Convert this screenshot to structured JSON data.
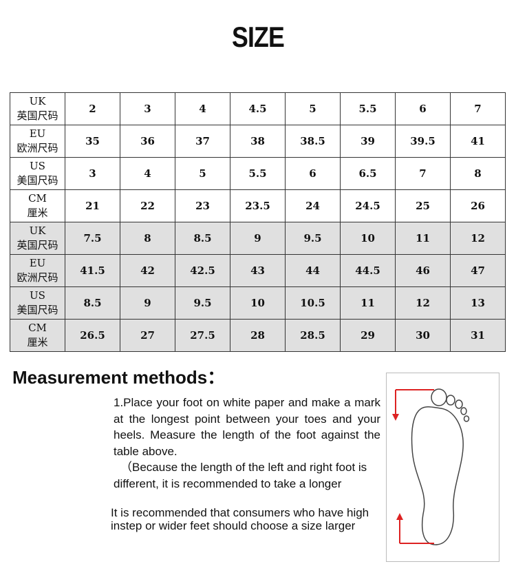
{
  "header": {
    "title": "SIZE"
  },
  "table": {
    "rows": [
      {
        "label": [
          "UK",
          "英国尺码"
        ],
        "cells": [
          "2",
          "3",
          "4",
          "4.5",
          "5",
          "5.5",
          "6",
          "7"
        ]
      },
      {
        "label": [
          "EU",
          "欧洲尺码"
        ],
        "cells": [
          "35",
          "36",
          "37",
          "38",
          "38.5",
          "39",
          "39.5",
          "41"
        ]
      },
      {
        "label": [
          "US",
          "美国尺码"
        ],
        "cells": [
          "3",
          "4",
          "5",
          "5.5",
          "6",
          "6.5",
          "7",
          "8"
        ]
      },
      {
        "label": [
          "CM",
          "厘米"
        ],
        "cells": [
          "21",
          "22",
          "23",
          "23.5",
          "24",
          "24.5",
          "25",
          "26"
        ]
      },
      {
        "label": [
          "UK",
          "英国尺码"
        ],
        "cells": [
          "7.5",
          "8",
          "8.5",
          "9",
          "9.5",
          "10",
          "11",
          "12"
        ]
      },
      {
        "label": [
          "EU",
          "欧洲尺码"
        ],
        "cells": [
          "41.5",
          "42",
          "42.5",
          "43",
          "44",
          "44.5",
          "46",
          "47"
        ]
      },
      {
        "label": [
          "US",
          "美国尺码"
        ],
        "cells": [
          "8.5",
          "9",
          "9.5",
          "10",
          "10.5",
          "11",
          "12",
          "13"
        ]
      },
      {
        "label": [
          "CM",
          "厘米"
        ],
        "cells": [
          "26.5",
          "27",
          "27.5",
          "28",
          "28.5",
          "29",
          "30",
          "31"
        ]
      }
    ]
  },
  "section": {
    "title": "Measurement methods：",
    "steps": [
      "1.Place your foot on white paper and make a mark at the longest point between your toes and your heels. Measure the length of the foot against the table above.",
      "（Because the length of the left and right foot is different, it is recommended to take a longer"
    ],
    "note": "It is recommended that consumers who have high instep or wider feet should choose a size larger"
  }
}
